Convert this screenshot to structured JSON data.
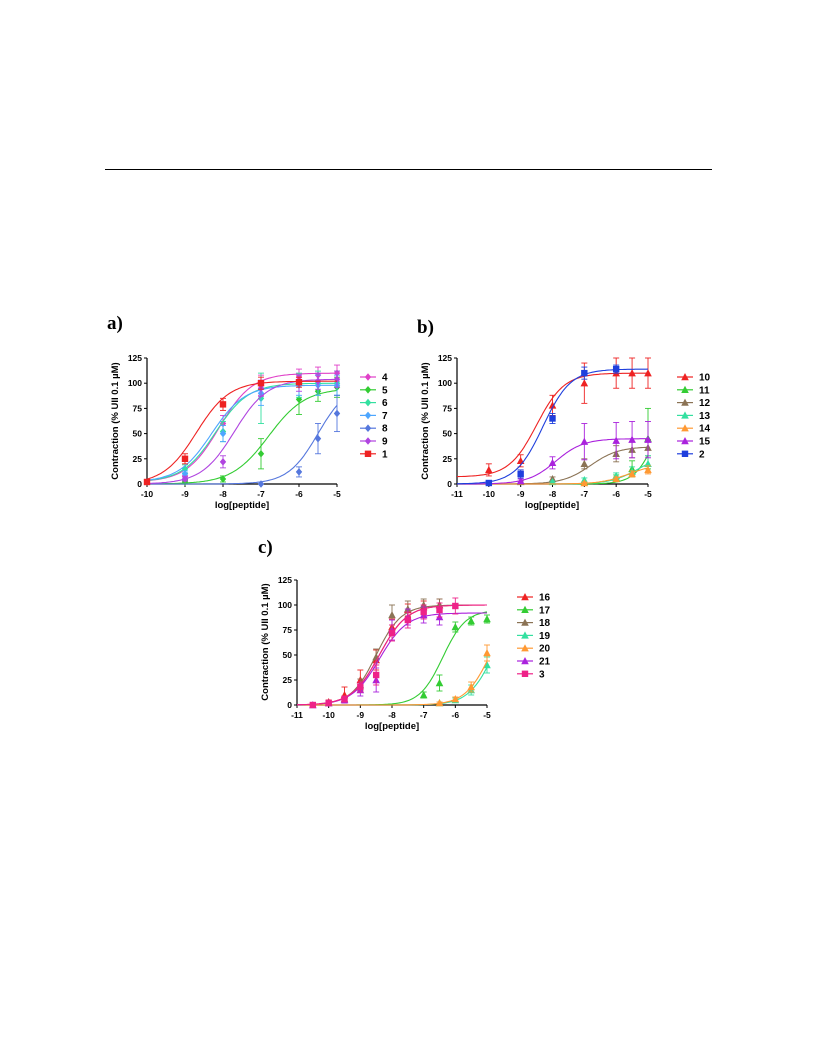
{
  "chart_data": [
    {
      "panel": "a)",
      "type": "scatter",
      "xlabel": "log[peptide]",
      "ylabel": "Contraction (% UII 0.1 µM)",
      "xlim": [
        -10,
        -5
      ],
      "ylim": [
        0,
        125
      ],
      "xticks": [
        "-10",
        "-9",
        "-8",
        "-7",
        "-6",
        "-5"
      ],
      "yticks": [
        "0",
        "25",
        "50",
        "75",
        "100",
        "125"
      ],
      "legend_position": "right",
      "series": [
        {
          "name": "4",
          "color": "#e040c8",
          "marker": "diamond",
          "x": [
            -9,
            -8,
            -7,
            -6,
            -5.5,
            -5
          ],
          "y": [
            8,
            60,
            98,
            106,
            108,
            110
          ],
          "err": [
            3,
            8,
            10,
            8,
            8,
            8
          ],
          "fit": {
            "bottom": 2,
            "top": 110,
            "logec50": -8.1,
            "hill": 1
          }
        },
        {
          "name": "5",
          "color": "#33cc33",
          "marker": "diamond",
          "x": [
            -9,
            -8,
            -7,
            -6,
            -5.5,
            -5
          ],
          "y": [
            2,
            5,
            30,
            84,
            92,
            96
          ],
          "err": [
            2,
            3,
            15,
            15,
            10,
            10
          ],
          "fit": {
            "bottom": 0,
            "top": 95,
            "logec50": -6.8,
            "hill": 0.9
          }
        },
        {
          "name": "6",
          "color": "#33e0a0",
          "marker": "diamond",
          "x": [
            -9,
            -8,
            -7,
            -6,
            -5.5,
            -5
          ],
          "y": [
            15,
            52,
            85,
            98,
            100,
            100
          ],
          "err": [
            4,
            10,
            25,
            12,
            12,
            12
          ],
          "fit": {
            "bottom": 2,
            "top": 100,
            "logec50": -8.2,
            "hill": 1
          }
        },
        {
          "name": "7",
          "color": "#4da6ff",
          "marker": "diamond",
          "x": [
            -9,
            -8,
            -7,
            -6,
            -5.5,
            -5
          ],
          "y": [
            10,
            50,
            90,
            98,
            98,
            98
          ],
          "err": [
            3,
            8,
            12,
            10,
            10,
            10
          ],
          "fit": {
            "bottom": 2,
            "top": 98,
            "logec50": -8.3,
            "hill": 1
          }
        },
        {
          "name": "8",
          "color": "#5577dd",
          "marker": "diamond",
          "x": [
            -7,
            -6,
            -5.5,
            -5
          ],
          "y": [
            0,
            12,
            45,
            70
          ],
          "err": [
            0,
            5,
            15,
            18
          ],
          "fit": {
            "bottom": 0,
            "top": 100,
            "logec50": -5.5,
            "hill": 1.1
          }
        },
        {
          "name": "9",
          "color": "#b044e0",
          "marker": "diamond",
          "x": [
            -9,
            -8,
            -7,
            -6,
            -5.5,
            -5
          ],
          "y": [
            5,
            22,
            95,
            100,
            102,
            104
          ],
          "err": [
            2,
            6,
            8,
            8,
            8,
            8
          ],
          "fit": {
            "bottom": 0,
            "top": 104,
            "logec50": -7.7,
            "hill": 1
          }
        },
        {
          "name": "1",
          "color": "#ee2222",
          "marker": "square",
          "x": [
            -10,
            -9,
            -8,
            -7,
            -6
          ],
          "y": [
            2,
            25,
            79,
            100,
            101
          ],
          "err": [
            0,
            5,
            6,
            6,
            5
          ],
          "fit": {
            "bottom": 0,
            "top": 102,
            "logec50": -8.7,
            "hill": 1
          }
        }
      ]
    },
    {
      "panel": "b)",
      "type": "scatter",
      "xlabel": "log[peptide]",
      "ylabel": "Contraction (% UII 0.1 µM)",
      "xlim": [
        -11,
        -5
      ],
      "ylim": [
        0,
        125
      ],
      "xticks": [
        "-11",
        "-10",
        "-9",
        "-8",
        "-7",
        "-6",
        "-5"
      ],
      "yticks": [
        "0",
        "25",
        "50",
        "75",
        "100",
        "125"
      ],
      "legend_position": "right",
      "series": [
        {
          "name": "10",
          "color": "#ee2222",
          "marker": "triangle",
          "x": [
            -10,
            -9,
            -8,
            -7,
            -6,
            -5.5,
            -5
          ],
          "y": [
            14,
            23,
            78,
            100,
            110,
            110,
            110
          ],
          "err": [
            6,
            6,
            10,
            20,
            15,
            15,
            15
          ],
          "fit": {
            "bottom": 7,
            "top": 110,
            "logec50": -8.5,
            "hill": 1
          }
        },
        {
          "name": "11",
          "color": "#33cc33",
          "marker": "triangle",
          "x": [
            -7,
            -6,
            -5.5,
            -5
          ],
          "y": [
            2,
            6,
            15,
            45
          ],
          "err": [
            0,
            3,
            8,
            30
          ],
          "fit": {
            "bottom": 0,
            "top": 100,
            "logec50": -4.7,
            "hill": 1.3
          }
        },
        {
          "name": "12",
          "color": "#8b7355",
          "marker": "triangle",
          "x": [
            -9,
            -8,
            -7,
            -6,
            -5.5,
            -5
          ],
          "y": [
            2,
            5,
            20,
            30,
            34,
            36
          ],
          "err": [
            1,
            2,
            5,
            8,
            8,
            8
          ],
          "fit": {
            "bottom": 0,
            "top": 37,
            "logec50": -6.8,
            "hill": 1
          }
        },
        {
          "name": "13",
          "color": "#33e0a0",
          "marker": "triangle",
          "x": [
            -8,
            -7,
            -6,
            -5.5,
            -5
          ],
          "y": [
            2,
            4,
            8,
            12,
            20
          ],
          "err": [
            1,
            2,
            3,
            5,
            8
          ],
          "fit": {
            "bottom": 0,
            "top": 30,
            "logec50": -5.3,
            "hill": 1
          }
        },
        {
          "name": "14",
          "color": "#ff9933",
          "marker": "triangle",
          "x": [
            -7,
            -6,
            -5.5,
            -5
          ],
          "y": [
            1,
            5,
            10,
            14
          ],
          "err": [
            1,
            2,
            3,
            4
          ],
          "fit": {
            "bottom": 0,
            "top": 20,
            "logec50": -5.6,
            "hill": 1
          }
        },
        {
          "name": "15",
          "color": "#aa22dd",
          "marker": "triangle",
          "x": [
            -9,
            -8,
            -7,
            -6,
            -5.5,
            -5
          ],
          "y": [
            3,
            21,
            42,
            43,
            44,
            44
          ],
          "err": [
            2,
            6,
            18,
            18,
            18,
            18
          ],
          "fit": {
            "bottom": 0,
            "top": 45,
            "logec50": -7.9,
            "hill": 1
          }
        },
        {
          "name": "2",
          "color": "#1f3fdd",
          "marker": "square",
          "x": [
            -10,
            -9,
            -8,
            -7,
            -6
          ],
          "y": [
            1,
            10,
            65,
            110,
            114
          ],
          "err": [
            0,
            4,
            5,
            6,
            4
          ],
          "fit": {
            "bottom": 0,
            "top": 114,
            "logec50": -8.3,
            "hill": 1
          }
        }
      ]
    },
    {
      "panel": "c)",
      "type": "scatter",
      "xlabel": "log[peptide]",
      "ylabel": "Contraction (% UII 0.1 µM)",
      "xlim": [
        -11,
        -5
      ],
      "ylim": [
        0,
        125
      ],
      "xticks": [
        "-11",
        "-10",
        "-9",
        "-8",
        "-7",
        "-6",
        "-5"
      ],
      "yticks": [
        "0",
        "25",
        "50",
        "75",
        "100",
        "125"
      ],
      "legend_position": "right",
      "series": [
        {
          "name": "16",
          "color": "#ee2222",
          "marker": "triangle",
          "x": [
            -10,
            -9.5,
            -9,
            -8.5,
            -8,
            -7.5,
            -7,
            -6.5
          ],
          "y": [
            3,
            10,
            25,
            45,
            78,
            95,
            98,
            100
          ],
          "err": [
            2,
            8,
            10,
            10,
            8,
            6,
            6,
            6
          ],
          "fit": {
            "bottom": 0,
            "top": 100,
            "logec50": -8.4,
            "hill": 1
          }
        },
        {
          "name": "17",
          "color": "#33cc33",
          "marker": "triangle",
          "x": [
            -7,
            -6.5,
            -6,
            -5.5,
            -5
          ],
          "y": [
            10,
            22,
            78,
            84,
            86
          ],
          "err": [
            3,
            8,
            5,
            4,
            4
          ],
          "fit": {
            "bottom": 0,
            "top": 95,
            "logec50": -6.4,
            "hill": 1.2
          }
        },
        {
          "name": "18",
          "color": "#8b7355",
          "marker": "triangle",
          "x": [
            -10,
            -9.5,
            -9,
            -8.5,
            -8,
            -7.5,
            -7,
            -6.5
          ],
          "y": [
            2,
            6,
            20,
            48,
            90,
            96,
            100,
            100
          ],
          "err": [
            1,
            3,
            6,
            8,
            10,
            8,
            6,
            6
          ],
          "fit": {
            "bottom": 0,
            "top": 100,
            "logec50": -8.5,
            "hill": 1.1
          }
        },
        {
          "name": "19",
          "color": "#33e0a0",
          "marker": "triangle",
          "x": [
            -6.5,
            -6,
            -5.5,
            -5
          ],
          "y": [
            2,
            5,
            15,
            40
          ],
          "err": [
            1,
            2,
            5,
            8
          ],
          "fit": {
            "bottom": 0,
            "top": 100,
            "logec50": -4.8,
            "hill": 1.1
          }
        },
        {
          "name": "20",
          "color": "#ff9933",
          "marker": "triangle",
          "x": [
            -6.5,
            -6,
            -5.5,
            -5
          ],
          "y": [
            2,
            6,
            18,
            52
          ],
          "err": [
            1,
            2,
            5,
            8
          ],
          "fit": {
            "bottom": 0,
            "top": 100,
            "logec50": -4.9,
            "hill": 1.1
          }
        },
        {
          "name": "21",
          "color": "#aa22dd",
          "marker": "triangle",
          "x": [
            -10.5,
            -10,
            -9.5,
            -9,
            -8.5,
            -8,
            -7.5,
            -7,
            -6.5
          ],
          "y": [
            0,
            2,
            5,
            15,
            25,
            75,
            88,
            90,
            88
          ],
          "err": [
            0,
            1,
            3,
            6,
            12,
            10,
            8,
            8,
            8
          ],
          "fit": {
            "bottom": 0,
            "top": 92,
            "logec50": -8.4,
            "hill": 1
          }
        },
        {
          "name": "3",
          "color": "#ee2288",
          "marker": "square",
          "x": [
            -10.5,
            -10,
            -9.5,
            -9,
            -8.5,
            -8,
            -7.5,
            -7,
            -6.5,
            -6
          ],
          "y": [
            0,
            2,
            6,
            18,
            30,
            72,
            85,
            93,
            95,
            99
          ],
          "err": [
            0,
            1,
            3,
            5,
            10,
            8,
            8,
            7,
            7,
            8
          ],
          "fit": {
            "bottom": 0,
            "top": 100,
            "logec50": -8.4,
            "hill": 1
          }
        }
      ]
    }
  ]
}
